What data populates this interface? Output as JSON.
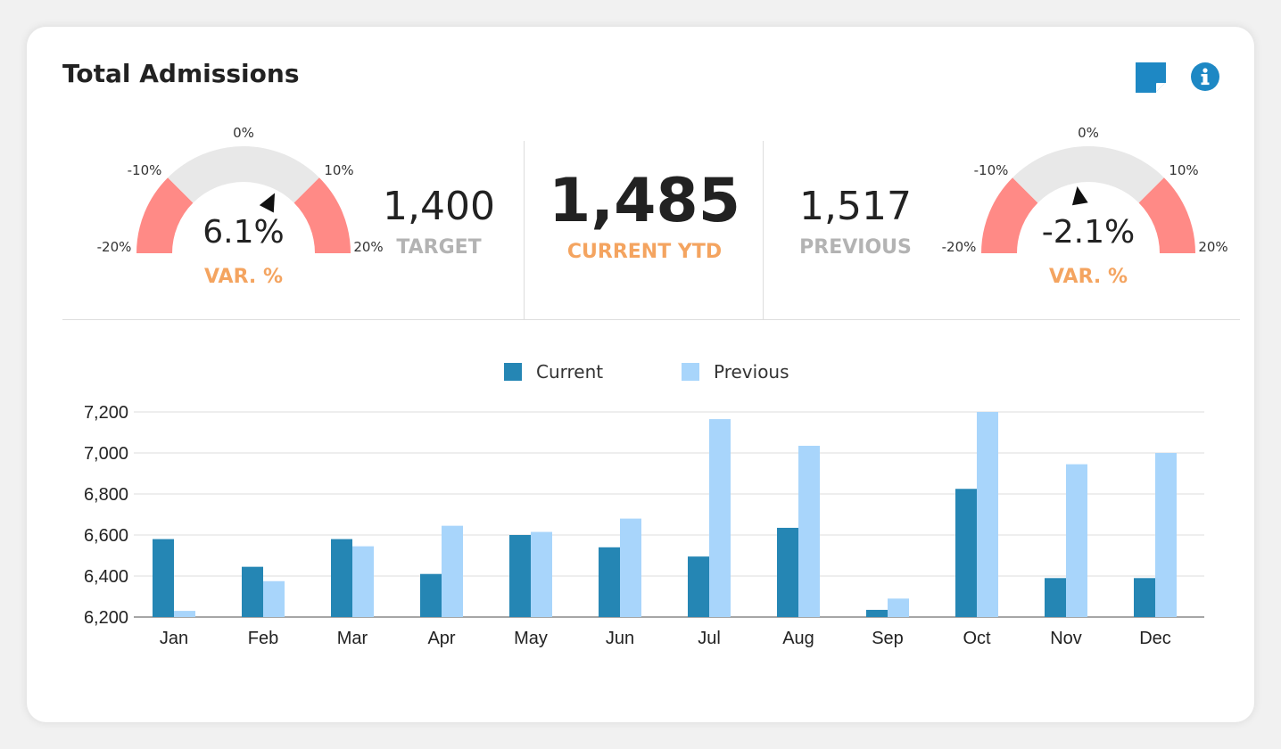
{
  "header": {
    "title": "Total Admissions",
    "note_icon": "sticky-note-icon",
    "info_icon": "info-icon"
  },
  "colors": {
    "current": "#2586b4",
    "previous": "#a8d5fb",
    "accent_orange": "#f4a460",
    "gauge_red": "#ff8a86",
    "gauge_gray": "#e8e8e8",
    "muted_label": "#b3b3b3",
    "icon_blue": "#1e88c4"
  },
  "gauge_left": {
    "ticks": {
      "m20": "-20%",
      "m10": "-10%",
      "zero": "0%",
      "p10": "10%",
      "p20": "20%"
    },
    "value": "6.1%",
    "value_number": 6.1,
    "label": "VAR. %"
  },
  "gauge_right": {
    "ticks": {
      "m20": "-20%",
      "m10": "-10%",
      "zero": "0%",
      "p10": "10%",
      "p20": "20%"
    },
    "value": "-2.1%",
    "value_number": -2.1,
    "label": "VAR. %"
  },
  "kpis": {
    "target": {
      "value": "1,400",
      "label": "TARGET"
    },
    "current": {
      "value": "1,485",
      "label": "CURRENT YTD"
    },
    "previous": {
      "value": "1,517",
      "label": "PREVIOUS"
    }
  },
  "chart_data": {
    "type": "bar",
    "categories": [
      "Jan",
      "Feb",
      "Mar",
      "Apr",
      "May",
      "Jun",
      "Jul",
      "Aug",
      "Sep",
      "Oct",
      "Nov",
      "Dec"
    ],
    "series": [
      {
        "name": "Current",
        "values": [
          6580,
          6445,
          6580,
          6410,
          6600,
          6540,
          6495,
          6635,
          6235,
          6825,
          6390,
          6390
        ]
      },
      {
        "name": "Previous",
        "values": [
          6230,
          6375,
          6545,
          6645,
          6615,
          6680,
          7165,
          7035,
          6290,
          7200,
          6945,
          7000
        ]
      }
    ],
    "ylim": [
      6200,
      7200
    ],
    "yticks": [
      6200,
      6400,
      6600,
      6800,
      7000,
      7200
    ],
    "ytick_labels": [
      "6,200",
      "6,400",
      "6,600",
      "6,800",
      "7,000",
      "7,200"
    ],
    "grid": true,
    "legend": "top-center"
  }
}
